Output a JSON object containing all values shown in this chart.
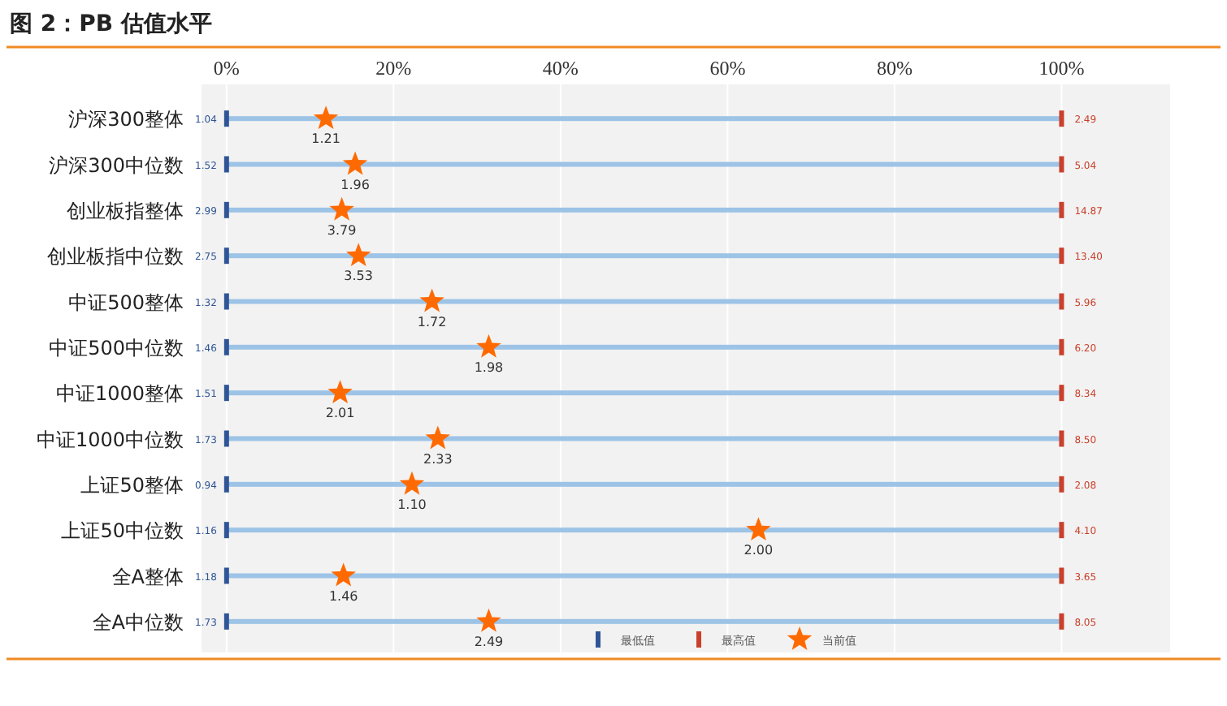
{
  "chart_data": {
    "type": "scatter",
    "title": "图 2：PB 估值水平",
    "orientation": "horizontal",
    "categories": [
      "沪深300整体",
      "沪深300中位数",
      "创业板指整体",
      "创业板指中位数",
      "中证500整体",
      "中证500中位数",
      "中证1000整体",
      "中证1000中位数",
      "上证50整体",
      "上证50中位数",
      "全A整体",
      "全A中位数"
    ],
    "xlim": [
      -3,
      113
    ],
    "xticks": [
      {
        "value": 0,
        "label": "0%"
      },
      {
        "value": 20,
        "label": "20%"
      },
      {
        "value": 40,
        "label": "40%"
      },
      {
        "value": 60,
        "label": "60%"
      },
      {
        "value": 80,
        "label": "80%"
      },
      {
        "value": 100,
        "label": "100%"
      }
    ],
    "grid": "x",
    "legend": "bottom right",
    "series": [
      {
        "type": "bar",
        "color": "#9dc3e6",
        "values": [
          100,
          100,
          100,
          100,
          100,
          100,
          100,
          100,
          100,
          100,
          100,
          100
        ]
      },
      {
        "name": "最低值",
        "marker": "square",
        "color": "#2f5597",
        "values": [
          0,
          0,
          0,
          0,
          0,
          0,
          0,
          0,
          0,
          0,
          0,
          0
        ]
      },
      {
        "name": "最高值",
        "marker": "square",
        "color": "#c9402b",
        "values": [
          100,
          100,
          100,
          100,
          100,
          100,
          100,
          100,
          100,
          100,
          100,
          100
        ]
      },
      {
        "name": "当前值",
        "marker": "star",
        "color": "#ff6a00",
        "values": [
          11.9,
          15.4,
          13.8,
          15.8,
          24.6,
          31.4,
          13.6,
          25.3,
          22.2,
          63.7,
          14.0,
          31.4
        ]
      }
    ],
    "annotations": [
      {
        "text": "1.04",
        "x": 0,
        "y": "沪深300整体"
      },
      {
        "text": "2.49",
        "x": 100,
        "y": "沪深300整体"
      },
      {
        "text": "1.21",
        "x": 11.9,
        "y": "沪深300整体"
      },
      {
        "text": "1.52",
        "x": 0,
        "y": "沪深300中位数"
      },
      {
        "text": "5.04",
        "x": 100,
        "y": "沪深300中位数"
      },
      {
        "text": "1.96",
        "x": 15.4,
        "y": "沪深300中位数"
      },
      {
        "text": "2.99",
        "x": 0,
        "y": "创业板指整体"
      },
      {
        "text": "14.87",
        "x": 100,
        "y": "创业板指整体"
      },
      {
        "text": "3.79",
        "x": 13.8,
        "y": "创业板指整体"
      },
      {
        "text": "2.75",
        "x": 0,
        "y": "创业板指中位数"
      },
      {
        "text": "13.40",
        "x": 100,
        "y": "创业板指中位数"
      },
      {
        "text": "3.53",
        "x": 15.8,
        "y": "创业板指中位数"
      },
      {
        "text": "1.32",
        "x": 0,
        "y": "中证500整体"
      },
      {
        "text": "5.96",
        "x": 100,
        "y": "中证500整体"
      },
      {
        "text": "1.72",
        "x": 24.6,
        "y": "中证500整体"
      },
      {
        "text": "1.46",
        "x": 0,
        "y": "中证500中位数"
      },
      {
        "text": "6.20",
        "x": 100,
        "y": "中证500中位数"
      },
      {
        "text": "1.98",
        "x": 31.4,
        "y": "中证500中位数"
      },
      {
        "text": "1.51",
        "x": 0,
        "y": "中证1000整体"
      },
      {
        "text": "8.34",
        "x": 100,
        "y": "中证1000整体"
      },
      {
        "text": "2.01",
        "x": 13.6,
        "y": "中证1000整体"
      },
      {
        "text": "1.73",
        "x": 0,
        "y": "中证1000中位数"
      },
      {
        "text": "8.50",
        "x": 100,
        "y": "中证1000中位数"
      },
      {
        "text": "2.33",
        "x": 25.3,
        "y": "中证1000中位数"
      },
      {
        "text": "0.94",
        "x": 0,
        "y": "上证50整体"
      },
      {
        "text": "2.08",
        "x": 100,
        "y": "上证50整体"
      },
      {
        "text": "1.10",
        "x": 22.2,
        "y": "上证50整体"
      },
      {
        "text": "1.16",
        "x": 0,
        "y": "上证50中位数"
      },
      {
        "text": "4.10",
        "x": 100,
        "y": "上证50中位数"
      },
      {
        "text": "2.00",
        "x": 63.7,
        "y": "上证50中位数"
      },
      {
        "text": "1.18",
        "x": 0,
        "y": "全A整体"
      },
      {
        "text": "3.65",
        "x": 100,
        "y": "全A整体"
      },
      {
        "text": "1.46",
        "x": 14.0,
        "y": "全A整体"
      },
      {
        "text": "1.73",
        "x": 0,
        "y": "全A中位数"
      },
      {
        "text": "8.05",
        "x": 100,
        "y": "全A中位数"
      },
      {
        "text": "2.49",
        "x": 31.4,
        "y": "全A中位数"
      }
    ]
  }
}
